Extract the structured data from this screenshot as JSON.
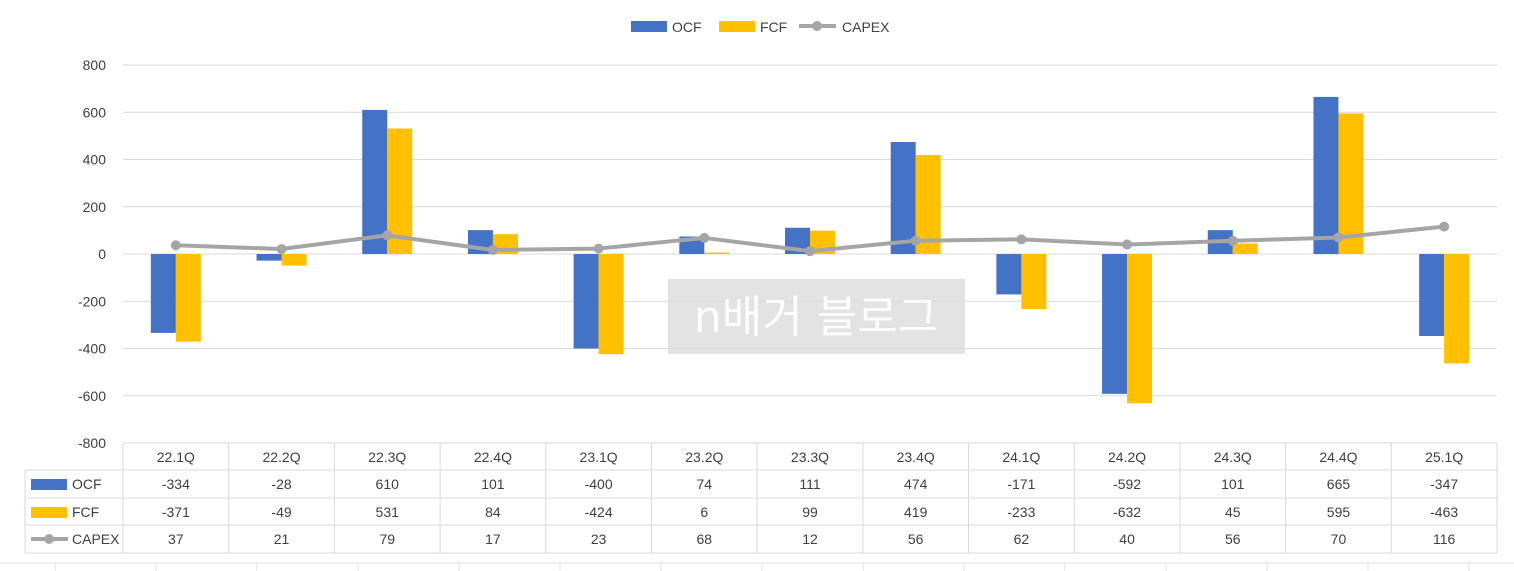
{
  "chart_data": {
    "type": "bar",
    "title": "",
    "categories": [
      "22.1Q",
      "22.2Q",
      "22.3Q",
      "22.4Q",
      "23.1Q",
      "23.2Q",
      "23.3Q",
      "23.4Q",
      "24.1Q",
      "24.2Q",
      "24.3Q",
      "24.4Q",
      "25.1Q"
    ],
    "series": [
      {
        "name": "OCF",
        "kind": "bar",
        "color": "#4472C4",
        "values": [
          -334,
          -28,
          610,
          101,
          -400,
          74,
          111,
          474,
          -171,
          -592,
          101,
          665,
          -347
        ]
      },
      {
        "name": "FCF",
        "kind": "bar",
        "color": "#FFC000",
        "values": [
          -371,
          -49,
          531,
          84,
          -424,
          6,
          99,
          419,
          -233,
          -632,
          45,
          595,
          -463
        ]
      },
      {
        "name": "CAPEX",
        "kind": "line",
        "color": "#A5A5A5",
        "values": [
          37,
          21,
          79,
          17,
          23,
          68,
          12,
          56,
          62,
          40,
          56,
          70,
          116
        ]
      }
    ],
    "yticks": [
      "800",
      "600",
      "400",
      "200",
      "0",
      "-200",
      "-400",
      "-600",
      "-800"
    ],
    "ylim": [
      -800,
      800
    ],
    "grid": true,
    "legend": "top-center",
    "data_table": true
  },
  "watermark": "n배거 블로그"
}
